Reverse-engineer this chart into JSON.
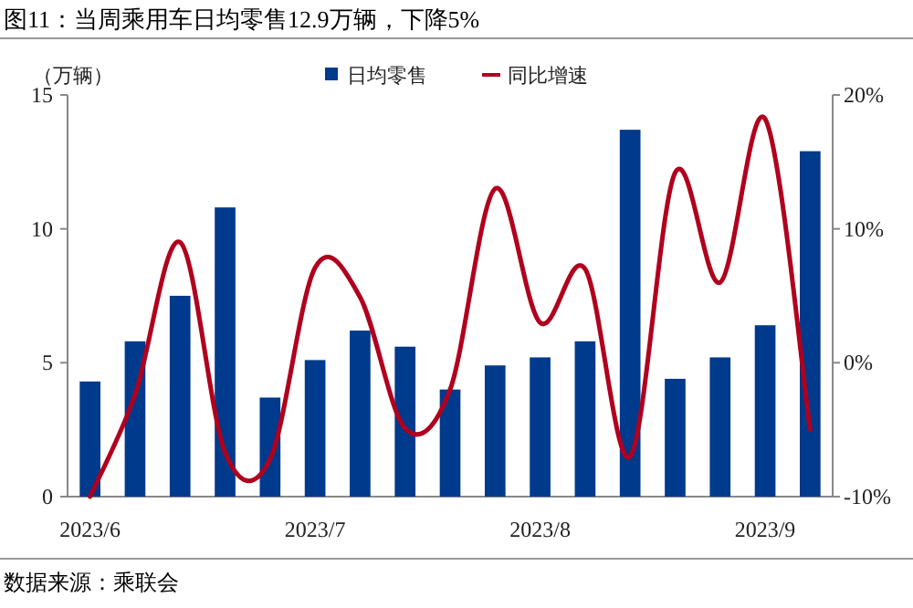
{
  "chart_data": {
    "type": "bar",
    "title": "图11：当周乘用车日均零售12.9万辆，下降5%",
    "ylabel": "（万辆）",
    "categories": [
      "2023/6",
      null,
      null,
      null,
      null,
      "2023/7",
      null,
      null,
      null,
      null,
      "2023/8",
      null,
      null,
      null,
      null,
      "2023/9",
      null
    ],
    "series": [
      {
        "name": "日均零售",
        "color": "#003a8c",
        "values": [
          4.3,
          5.8,
          7.5,
          10.8,
          3.7,
          5.1,
          6.2,
          5.6,
          4.0,
          4.9,
          5.2,
          5.8,
          13.7,
          4.4,
          5.2,
          6.4,
          12.9
        ]
      },
      {
        "name": "同比增速",
        "type": "line",
        "axis": "y2",
        "color": "#b0001e",
        "values": [
          -10,
          -2.4,
          9,
          -6.7,
          -7.2,
          7.1,
          4.9,
          -4.9,
          -2,
          13,
          3,
          7,
          -7,
          14.2,
          6,
          18.2,
          -5
        ]
      }
    ],
    "ylim": [
      0,
      15
    ],
    "yticks": [
      0,
      5,
      10,
      15
    ],
    "y2lim": [
      -10,
      20
    ],
    "y2ticks": [
      {
        "value": -10,
        "label": "-10%"
      },
      {
        "value": 0,
        "label": "0%"
      },
      {
        "value": 10,
        "label": "10%"
      },
      {
        "value": 20,
        "label": "20%"
      }
    ],
    "legend": "top",
    "grid": false,
    "annotations": [
      "数据来源：乘联会"
    ]
  }
}
